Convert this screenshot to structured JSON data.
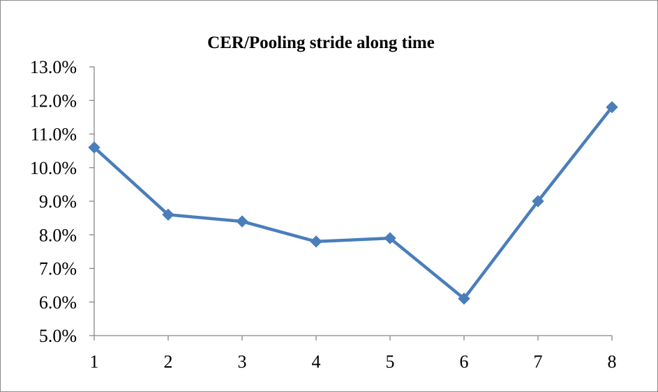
{
  "chart_data": {
    "type": "line",
    "title": "CER/Pooling stride along time",
    "xlabel": "",
    "ylabel": "",
    "x": [
      1,
      2,
      3,
      4,
      5,
      6,
      7,
      8
    ],
    "x_tick_labels": [
      "1",
      "2",
      "3",
      "4",
      "5",
      "6",
      "7",
      "8"
    ],
    "y_tick_labels": [
      "5.0%",
      "6.0%",
      "7.0%",
      "8.0%",
      "9.0%",
      "10.0%",
      "11.0%",
      "12.0%",
      "13.0%"
    ],
    "ylim": [
      5.0,
      13.0
    ],
    "y_unit": "%",
    "grid": false,
    "legend": "none",
    "marker": "diamond",
    "series": [
      {
        "values": [
          10.6,
          8.6,
          8.4,
          7.8,
          7.9,
          6.1,
          9.0,
          11.8
        ],
        "color": "#4a7ebb"
      }
    ],
    "axis_color": "#868686"
  }
}
